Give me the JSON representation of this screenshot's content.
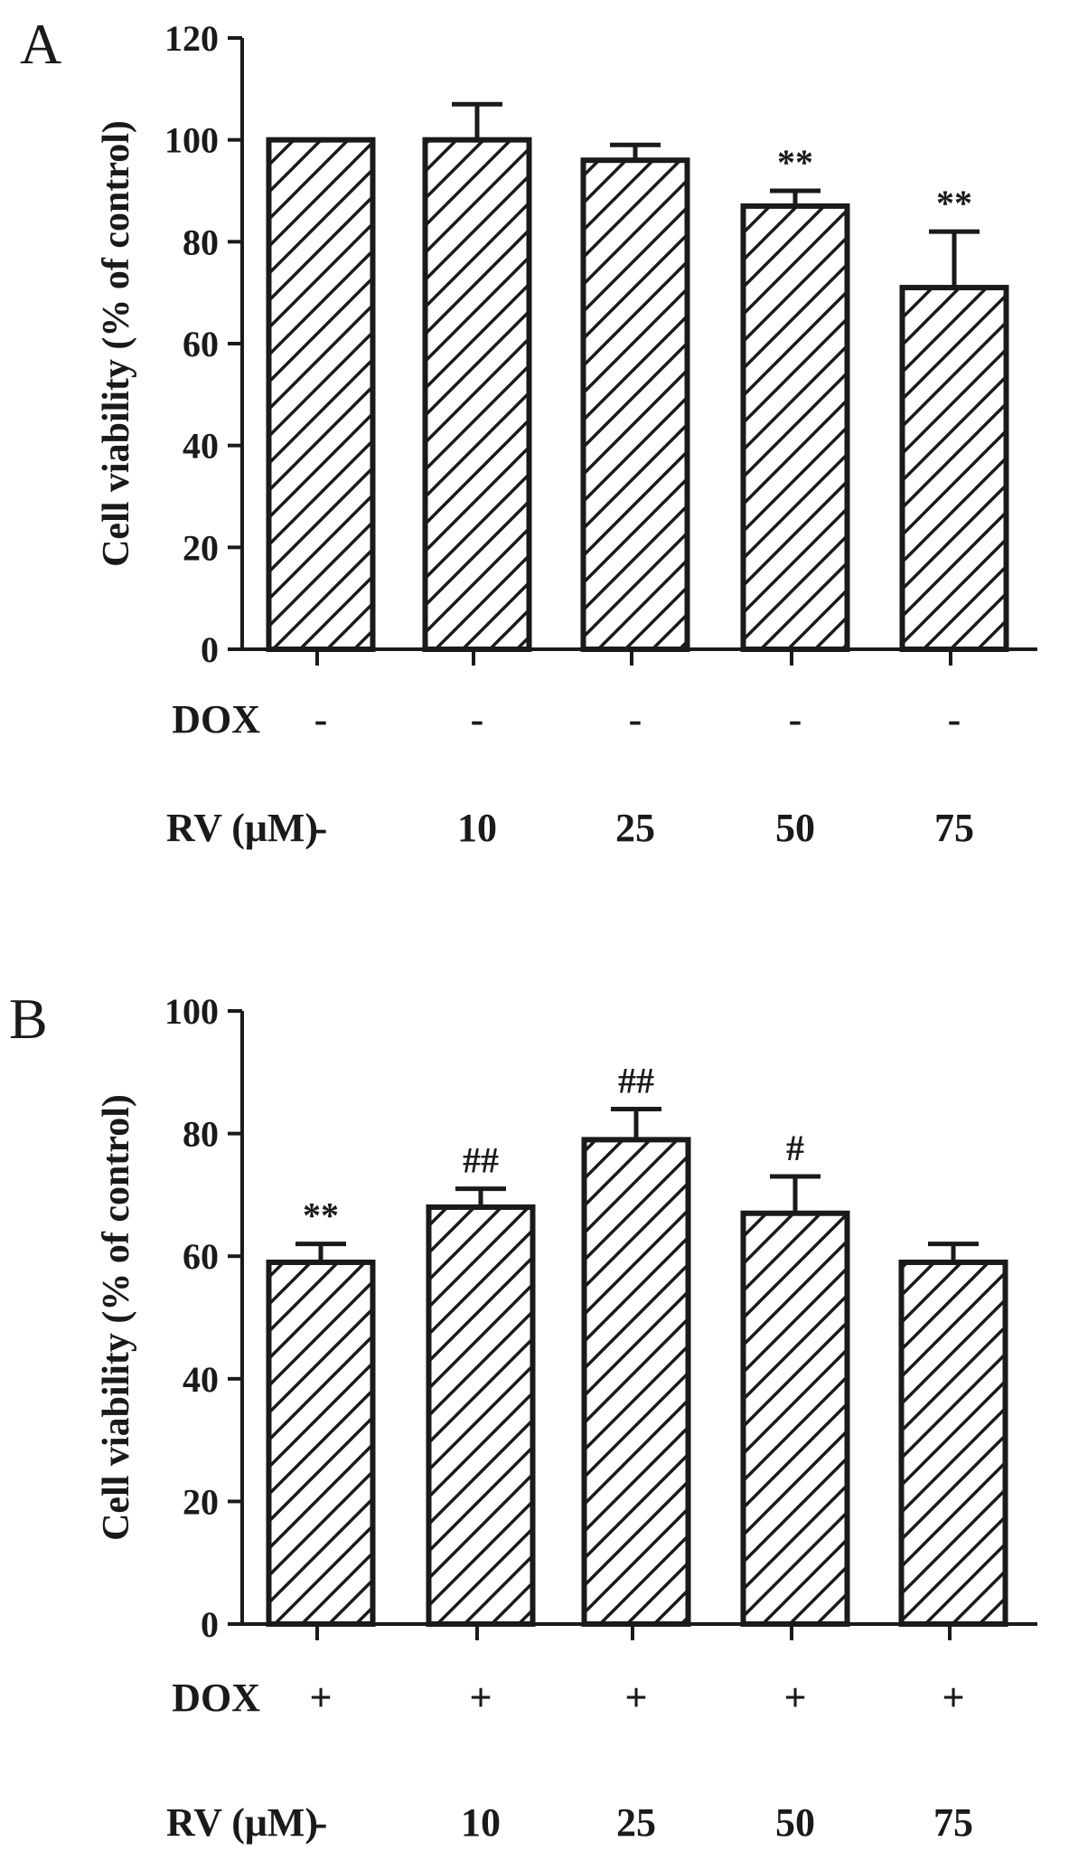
{
  "chart_data": [
    {
      "type": "bar",
      "panel": "A",
      "ylabel": "Cell viability (% of control)",
      "ylim": [
        0,
        120
      ],
      "yticks": [
        0,
        20,
        40,
        60,
        80,
        100,
        120
      ],
      "values": [
        100,
        100,
        96,
        87,
        71
      ],
      "errors": [
        0,
        7,
        3,
        3,
        11
      ],
      "annotations": [
        "",
        "",
        "",
        "**",
        "**"
      ],
      "rows": [
        {
          "label": "DOX",
          "values": [
            "-",
            "-",
            "-",
            "-",
            "-"
          ]
        },
        {
          "label": "RV (μM)",
          "values": [
            "-",
            "10",
            "25",
            "50",
            "75"
          ]
        }
      ],
      "grid": false,
      "fill": "diagonal-hatch"
    },
    {
      "type": "bar",
      "panel": "B",
      "ylabel": "Cell viability (% of control)",
      "ylim": [
        0,
        100
      ],
      "yticks": [
        0,
        20,
        40,
        60,
        80,
        100
      ],
      "values": [
        59,
        68,
        79,
        67,
        59
      ],
      "errors": [
        3,
        3,
        5,
        6,
        3
      ],
      "annotations": [
        "**",
        "##",
        "##",
        "#",
        ""
      ],
      "rows": [
        {
          "label": "DOX",
          "values": [
            "+",
            "+",
            "+",
            "+",
            "+"
          ]
        },
        {
          "label": "RV (μM)",
          "values": [
            "-",
            "10",
            "25",
            "50",
            "75"
          ]
        }
      ],
      "grid": false,
      "fill": "diagonal-hatch"
    }
  ],
  "colors": {
    "ink": "#1a1a1a",
    "background": "#ffffff"
  }
}
